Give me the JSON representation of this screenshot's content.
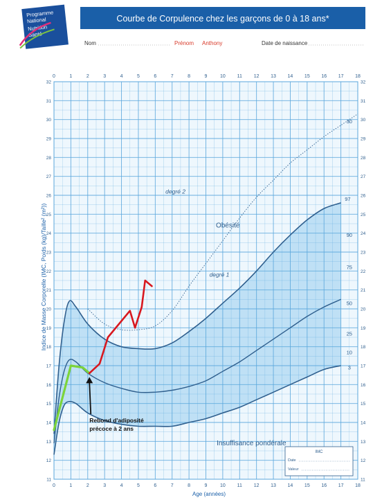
{
  "header": {
    "logo_lines": [
      "Programme",
      "National",
      "Nutrition",
      "Santé"
    ],
    "title": "Courbe de Corpulence chez les garçons de 0 à 18 ans*",
    "nom_label": "Nom",
    "prenom_label": "Prénom",
    "prenom_value": "Anthony",
    "date_label": "Date de naissance"
  },
  "inset_box": {
    "title": "IMC",
    "rows": [
      "Date",
      "Valeur"
    ]
  },
  "colors": {
    "header_blue": "#1a5fa8",
    "grid": "#5aa7dc",
    "band": "#bfe0f5",
    "curve": "#2f5f8e",
    "patient": "#d8181f",
    "early": "#7cd43a",
    "annotation": "#111111"
  },
  "chart_data": {
    "type": "line",
    "title": "Courbe de Corpulence chez les garçons de 0 à 18 ans*",
    "xlabel": "Age (années)",
    "ylabel": "Indice de Masse Corporelle (IMC, Poids (kg)/Taille² (m²))",
    "xlim": [
      0,
      18
    ],
    "ylim": [
      11,
      32
    ],
    "x_ticks": [
      0,
      1,
      2,
      3,
      4,
      5,
      6,
      7,
      8,
      9,
      10,
      11,
      12,
      13,
      14,
      15,
      16,
      17,
      18
    ],
    "y_ticks": [
      11,
      12,
      13,
      14,
      15,
      16,
      17,
      18,
      19,
      20,
      21,
      22,
      23,
      24,
      25,
      26,
      27,
      28,
      29,
      30,
      31,
      32
    ],
    "grid": true,
    "zone_labels": [
      {
        "text": "degré 2",
        "x": 7.2,
        "y": 26.1
      },
      {
        "text": "Obésité",
        "x": 10.3,
        "y": 24.3
      },
      {
        "text": "degré 1",
        "x": 9.8,
        "y": 21.7
      },
      {
        "text": "Insuffisance pondérale",
        "x": 11.7,
        "y": 12.8
      }
    ],
    "percentile_labels": [
      {
        "text": "30",
        "x": 17.5,
        "y": 29.8
      },
      {
        "text": "97",
        "x": 17.4,
        "y": 25.7
      },
      {
        "text": "90",
        "x": 17.5,
        "y": 23.8
      },
      {
        "text": "75",
        "x": 17.5,
        "y": 22.1
      },
      {
        "text": "50",
        "x": 17.5,
        "y": 20.2
      },
      {
        "text": "25",
        "x": 17.5,
        "y": 18.6
      },
      {
        "text": "10",
        "x": 17.5,
        "y": 17.6
      },
      {
        "text": "3",
        "x": 17.5,
        "y": 16.8
      }
    ],
    "series": [
      {
        "x": [
          2,
          3,
          4,
          5,
          6,
          7,
          8,
          9,
          10,
          11,
          12,
          13,
          14,
          15,
          16,
          17,
          18
        ],
        "y": [
          20,
          19.2,
          18.9,
          18.9,
          19.1,
          19.9,
          21.2,
          22.4,
          23.6,
          24.8,
          25.9,
          26.8,
          27.7,
          28.4,
          29.1,
          29.7,
          30.3
        ]
      },
      {
        "x": [
          0,
          0.3,
          0.6,
          0.9,
          1.3,
          2,
          3,
          4,
          5,
          6,
          7,
          8,
          9,
          10,
          11,
          12,
          13,
          14,
          15,
          16,
          17
        ],
        "y": [
          13.4,
          17,
          19.3,
          20.4,
          20.1,
          19.2,
          18.4,
          18,
          17.9,
          17.9,
          18.2,
          18.8,
          19.5,
          20.3,
          21.1,
          22,
          23,
          23.9,
          24.7,
          25.3,
          25.6
        ]
      },
      {
        "x": [
          0,
          0.3,
          0.6,
          0.9,
          1.3,
          2,
          3,
          4,
          5,
          6,
          7,
          8,
          9,
          10,
          11,
          12,
          13,
          14,
          15,
          16,
          17
        ],
        "y": [
          12.9,
          15.3,
          16.7,
          17.3,
          17.2,
          16.6,
          16.1,
          15.8,
          15.6,
          15.6,
          15.7,
          15.9,
          16.2,
          16.7,
          17.2,
          17.8,
          18.4,
          19,
          19.6,
          20.1,
          20.5
        ]
      },
      {
        "x": [
          0,
          0.3,
          0.6,
          0.9,
          1.3,
          2,
          3,
          4,
          5,
          6,
          7,
          8,
          9,
          10,
          11,
          12,
          13,
          14,
          15,
          16,
          17
        ],
        "y": [
          12.3,
          14,
          14.9,
          15.1,
          15,
          14.5,
          14.1,
          13.9,
          13.8,
          13.8,
          13.8,
          14,
          14.2,
          14.5,
          14.8,
          15.2,
          15.6,
          16,
          16.4,
          16.8,
          17
        ]
      },
      {
        "x": [
          0,
          1,
          1.7,
          2.1
        ],
        "y": [
          13.6,
          17,
          16.9,
          16.6
        ]
      },
      {
        "x": [
          2.1,
          2.7,
          3.2,
          4.5,
          4.8,
          5.2,
          5.4,
          5.8
        ],
        "y": [
          16.6,
          17.1,
          18.5,
          19.9,
          19,
          20.1,
          21.5,
          21.2
        ]
      }
    ],
    "annotation": {
      "lines": [
        "Rebond d'adiposité",
        "précoce à 2 ans"
      ],
      "text_x": 2.1,
      "text_y": 14,
      "arrow_to": [
        2.1,
        16.4
      ]
    }
  }
}
